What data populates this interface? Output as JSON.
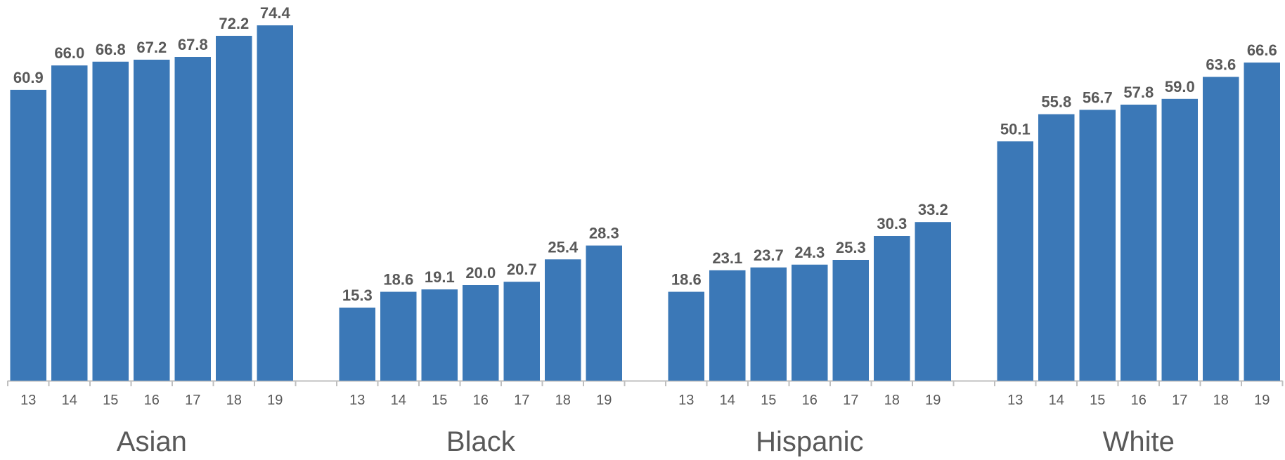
{
  "chart_data": {
    "type": "bar",
    "categories": [
      "13",
      "14",
      "15",
      "16",
      "17",
      "18",
      "19"
    ],
    "groups": [
      {
        "label": "Asian",
        "values": [
          60.9,
          66.0,
          66.8,
          67.2,
          67.8,
          72.2,
          74.4
        ]
      },
      {
        "label": "Black",
        "values": [
          15.3,
          18.6,
          19.1,
          20.0,
          20.7,
          25.4,
          28.3
        ]
      },
      {
        "label": "Hispanic",
        "values": [
          18.6,
          23.1,
          23.7,
          24.3,
          25.3,
          30.3,
          33.2
        ]
      },
      {
        "label": "White",
        "values": [
          50.1,
          55.8,
          56.7,
          57.8,
          59.0,
          63.6,
          66.6
        ]
      }
    ],
    "value_labels": true,
    "label_decimals": 1,
    "ylim": [
      0,
      80
    ],
    "grid": false,
    "legend": "none",
    "bar_color": "#3b78b7",
    "axis_color": "#bfbfbf",
    "text_color": "#595959"
  }
}
